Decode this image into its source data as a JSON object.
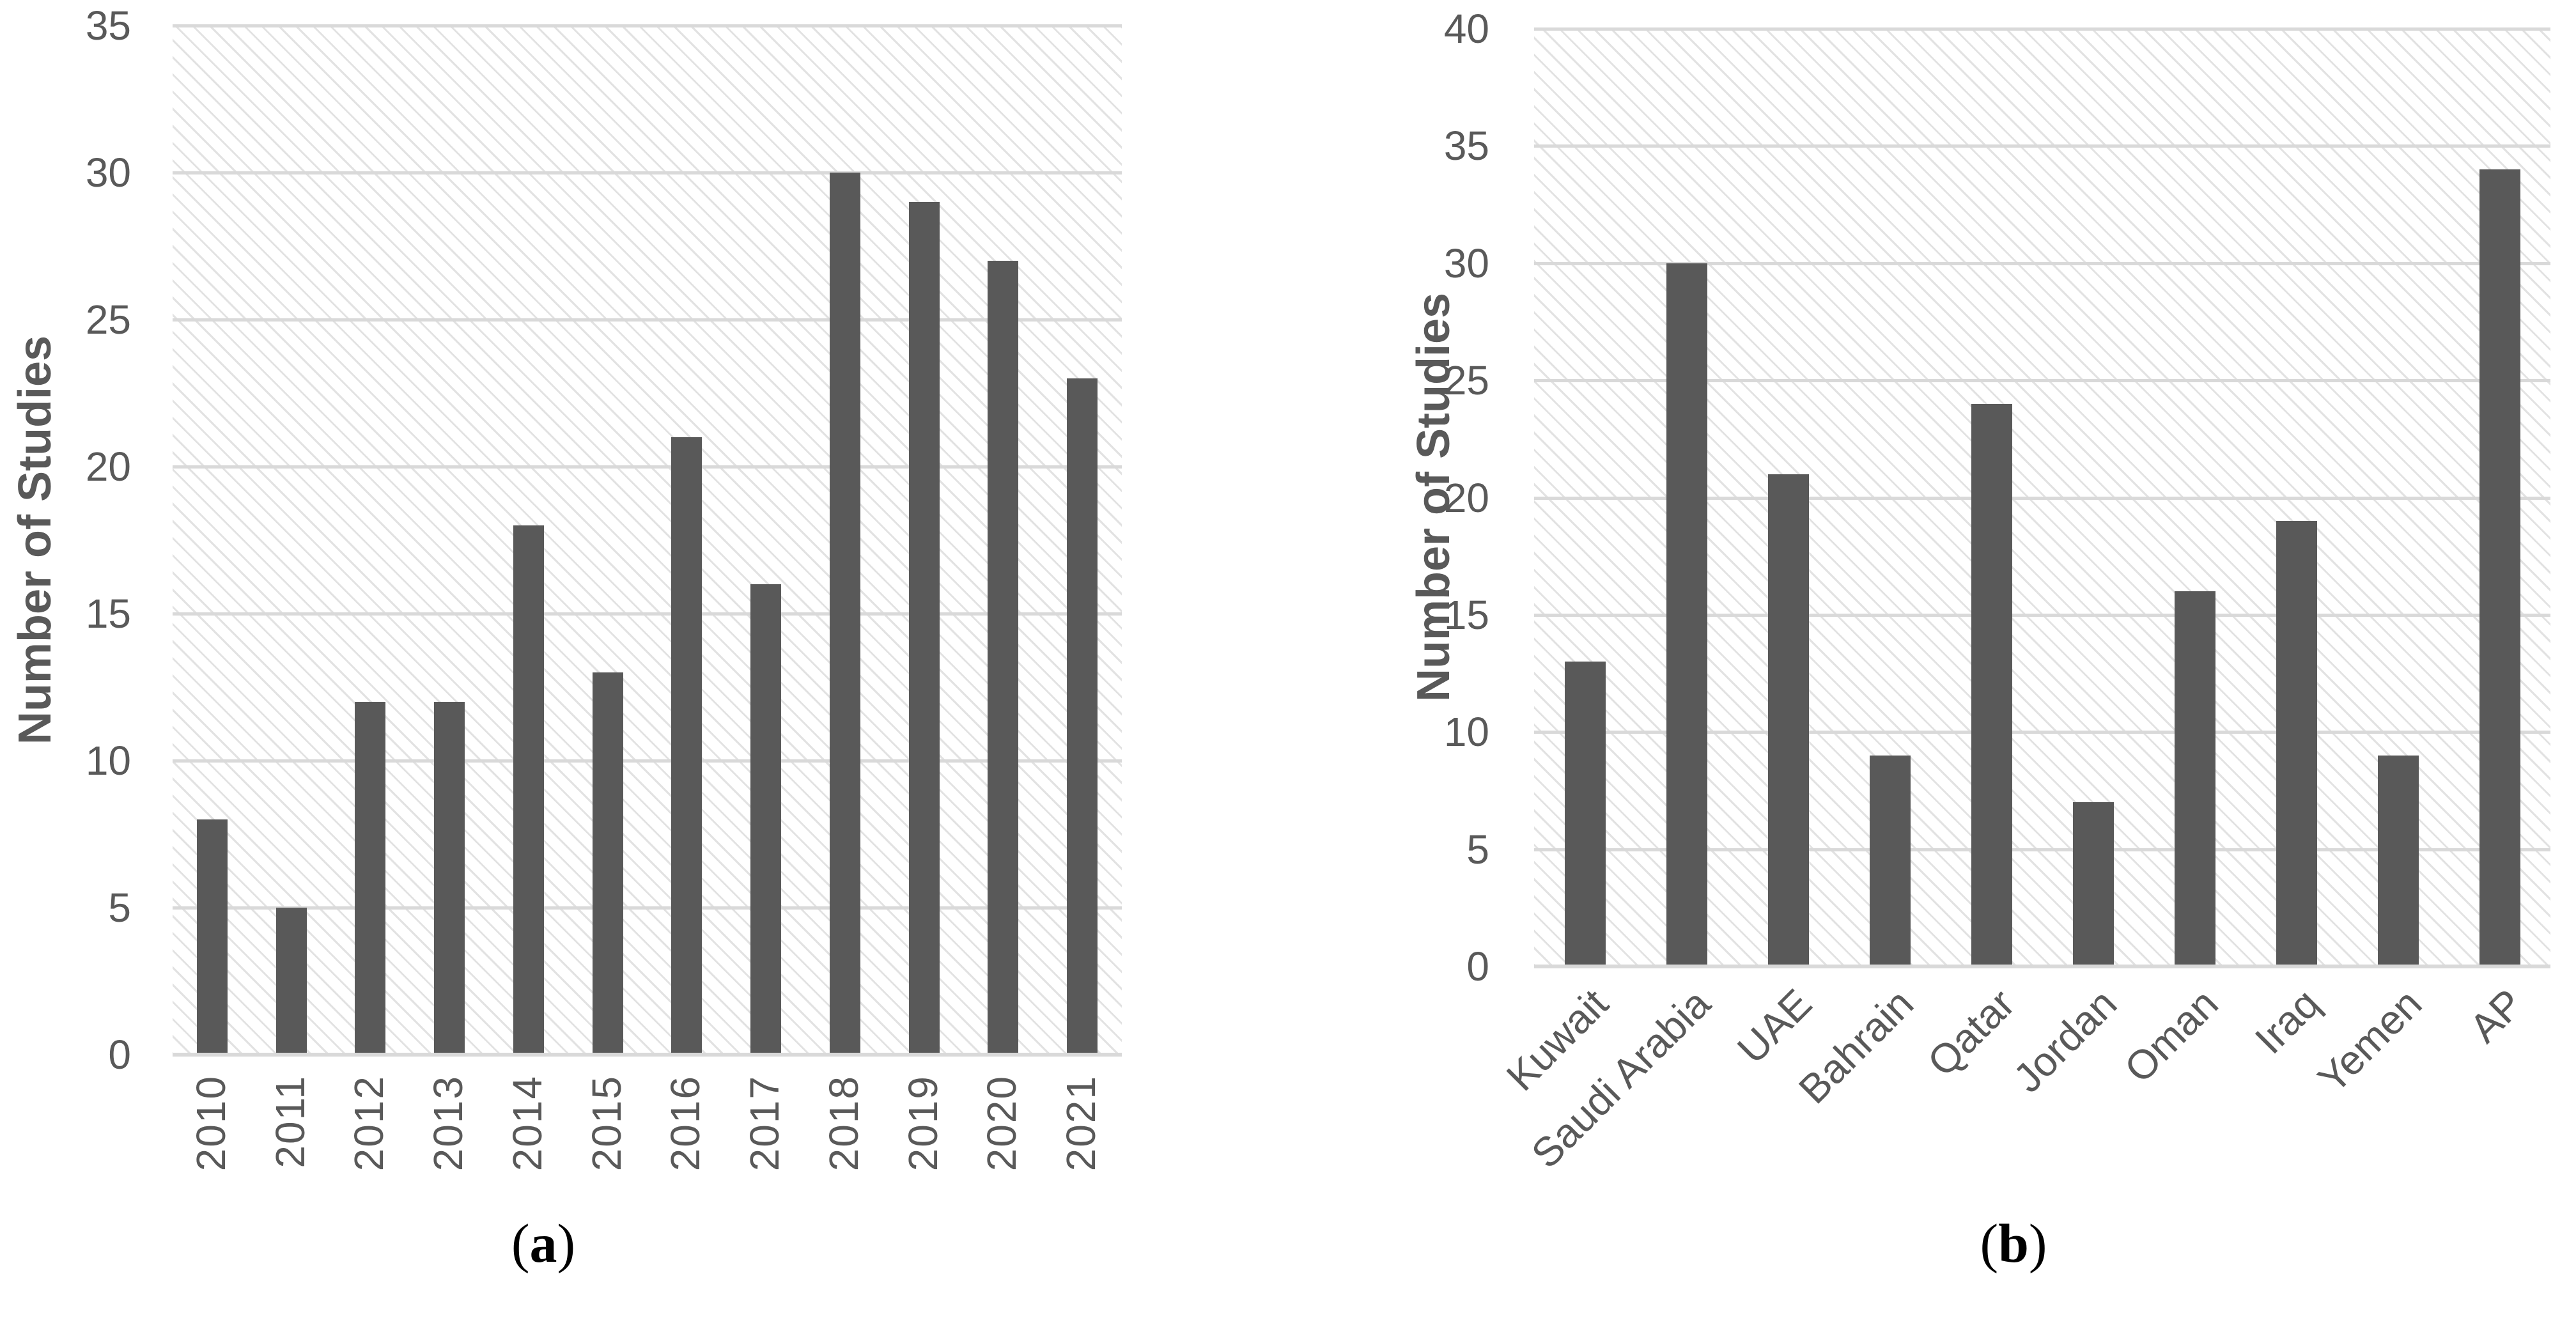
{
  "figure": {
    "background": "#ffffff",
    "bar_color": "#595959",
    "grid_color": "#d9d9d9",
    "axis_color": "#d9d9d9",
    "text_color": "#595959",
    "hatch_color": "rgba(160,160,160,0.30)"
  },
  "chart_data": [
    {
      "id": "a",
      "type": "bar",
      "title": "",
      "xlabel": "",
      "ylabel": "Number of Studies",
      "categories": [
        "2010",
        "2011",
        "2012",
        "2013",
        "2014",
        "2015",
        "2016",
        "2017",
        "2018",
        "2019",
        "2020",
        "2021"
      ],
      "values": [
        8,
        5,
        12,
        12,
        18,
        13,
        21,
        16,
        30,
        29,
        27,
        23
      ],
      "ylim": [
        0,
        35
      ],
      "yticks": [
        0,
        5,
        10,
        15,
        20,
        25,
        30,
        35
      ],
      "ytick_step": 5,
      "grid": "horizontal",
      "legend": "none",
      "xtick_rotation": 90,
      "caption": {
        "open": "(",
        "letter": "a",
        "close": ")"
      }
    },
    {
      "id": "b",
      "type": "bar",
      "title": "",
      "xlabel": "",
      "ylabel": "Number of Studies",
      "categories": [
        "Kuwait",
        "Saudi Arabia",
        "UAE",
        "Bahrain",
        "Qatar",
        "Jordan",
        "Oman",
        "Iraq",
        "Yemen",
        "AP"
      ],
      "values": [
        13,
        30,
        21,
        9,
        24,
        7,
        16,
        19,
        9,
        34
      ],
      "ylim": [
        0,
        40
      ],
      "yticks": [
        0,
        5,
        10,
        15,
        20,
        25,
        30,
        35,
        40
      ],
      "ytick_step": 5,
      "grid": "horizontal",
      "legend": "none",
      "xtick_rotation": 45,
      "caption": {
        "open": "(",
        "letter": "b",
        "close": ")"
      }
    }
  ]
}
